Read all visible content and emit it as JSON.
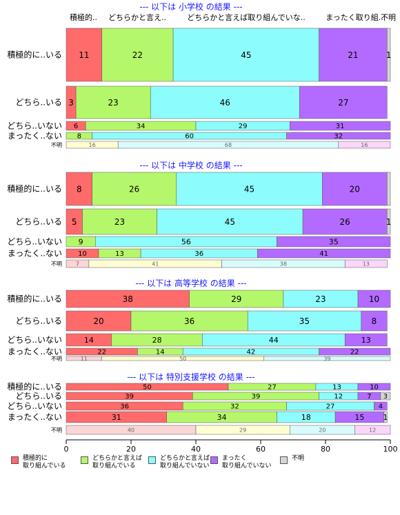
{
  "chart_data": {
    "type": "bar",
    "orientation": "horizontal-stacked",
    "xlim": [
      0,
      100
    ],
    "x_ticks": [
      "0",
      "20",
      "40",
      "60",
      "80",
      "100"
    ],
    "colors": {
      "積極的に取り組んでいる": "#ff6b6b",
      "どちらかと言えば取り組んでいる": "#b5f76a",
      "どちらかと言えば取り組んでいない": "#8dfcfc",
      "まったく取り組んでいない": "#b36bff",
      "不明": "#d6d6d6",
      "row_unknown_1": "#fffdd2",
      "row_unknown_2": "#d8fcfc",
      "row_unknown_3": "#fbd6fb",
      "row_unknown_0": "#fbd6d6"
    },
    "panels": [
      {
        "title": "--- 以下は 小学校 の結果 ---",
        "column_headers": [
          "積極的..",
          "どちらかと言え..",
          "どちらかと言えば取り組んでいな..",
          "まったく取り組..",
          "不明"
        ],
        "rows": [
          {
            "label": "積極的に..いる",
            "values": [
              11,
              22,
              45,
              21,
              1
            ],
            "labels": [
              "11",
              "22",
              "45",
              "21",
              "1"
            ]
          },
          {
            "label": "どちら..いる",
            "values": [
              3,
              23,
              46,
              27,
              0
            ],
            "labels": [
              "3",
              "23",
              "46",
              "27",
              ""
            ]
          },
          {
            "label": "どちら..いない",
            "values": [
              6,
              34,
              29,
              31,
              0
            ],
            "labels": [
              "6",
              "34",
              "29",
              "31",
              ""
            ]
          },
          {
            "label": "まったく..ない",
            "values": [
              0,
              8,
              60,
              32,
              0
            ],
            "labels": [
              "",
              "8",
              "60",
              "32",
              ""
            ]
          },
          {
            "label": "不明",
            "values": [
              0,
              16,
              68,
              16,
              0
            ],
            "labels": [
              "",
              "16",
              "68",
              "16",
              ""
            ]
          }
        ]
      },
      {
        "title": "--- 以下は 中学校 の結果 ---",
        "rows": [
          {
            "label": "積極的に..いる",
            "values": [
              8,
              26,
              45,
              20,
              1
            ],
            "labels": [
              "8",
              "26",
              "45",
              "20",
              ""
            ]
          },
          {
            "label": "どちら..いる",
            "values": [
              5,
              23,
              45,
              26,
              1
            ],
            "labels": [
              "5",
              "23",
              "45",
              "26",
              "1"
            ]
          },
          {
            "label": "どちら..いない",
            "values": [
              0,
              9,
              56,
              35,
              0
            ],
            "labels": [
              "",
              "9",
              "56",
              "35",
              ""
            ]
          },
          {
            "label": "まったく..ない",
            "values": [
              10,
              13,
              36,
              41,
              0
            ],
            "labels": [
              "10",
              "13",
              "36",
              "41",
              ""
            ]
          },
          {
            "label": "不明",
            "values": [
              7,
              41,
              38,
              13,
              0
            ],
            "labels": [
              "7",
              "41",
              "38",
              "13",
              ""
            ]
          }
        ]
      },
      {
        "title": "--- 以下は 高等学校 の結果 ---",
        "rows": [
          {
            "label": "積極的に..いる",
            "values": [
              38,
              29,
              23,
              10,
              0
            ],
            "labels": [
              "38",
              "29",
              "23",
              "10",
              ""
            ]
          },
          {
            "label": "どちら..いる",
            "values": [
              20,
              36,
              35,
              8,
              0
            ],
            "labels": [
              "20",
              "36",
              "35",
              "8",
              ""
            ]
          },
          {
            "label": "どちら..いない",
            "values": [
              14,
              28,
              44,
              13,
              0
            ],
            "labels": [
              "14",
              "28",
              "44",
              "13",
              ""
            ]
          },
          {
            "label": "まったく..ない",
            "values": [
              22,
              14,
              42,
              22,
              0
            ],
            "labels": [
              "22",
              "14",
              "42",
              "22",
              ""
            ]
          },
          {
            "label": "不明",
            "values": [
              11,
              50,
              39,
              0,
              0
            ],
            "labels": [
              "11",
              "50",
              "39",
              "",
              ""
            ]
          }
        ]
      },
      {
        "title": "--- 以下は 特別支援学校 の結果 ---",
        "rows": [
          {
            "label": "積極的に..いる",
            "values": [
              50,
              27,
              13,
              10,
              0
            ],
            "labels": [
              "50",
              "27",
              "13",
              "10",
              ""
            ]
          },
          {
            "label": "どちら..いる",
            "values": [
              39,
              39,
              12,
              7,
              3
            ],
            "labels": [
              "39",
              "39",
              "12",
              "7",
              "3"
            ]
          },
          {
            "label": "どちら..いない",
            "values": [
              36,
              32,
              27,
              4,
              0
            ],
            "labels": [
              "36",
              "32",
              "27",
              "4",
              ""
            ]
          },
          {
            "label": "まったく..ない",
            "values": [
              31,
              34,
              18,
              15,
              1
            ],
            "labels": [
              "31",
              "34",
              "18",
              "15",
              "1"
            ]
          },
          {
            "label": "不明",
            "values": [
              40,
              29,
              20,
              12,
              0
            ],
            "labels": [
              "40",
              "29",
              "20",
              "12",
              ""
            ]
          }
        ]
      }
    ],
    "legend": [
      {
        "label": "積極的に\n取り組んでいる"
      },
      {
        "label": "どちらかと言えば\n取り組んでいる"
      },
      {
        "label": "どちらかと言えば\n取り組んでいない"
      },
      {
        "label": "まったく\n取り組んでいない"
      },
      {
        "label": "不明"
      }
    ],
    "legend_placement": "bottom"
  }
}
